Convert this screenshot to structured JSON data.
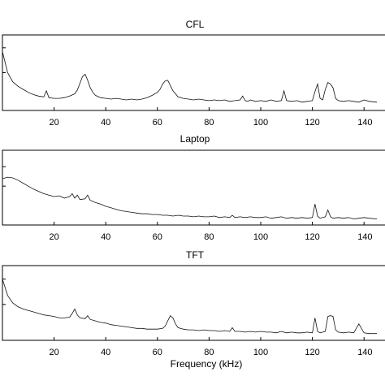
{
  "chart_data": [
    {
      "type": "line",
      "title": "CFL",
      "xlim": [
        0,
        145
      ],
      "x_ticks": [
        20,
        40,
        60,
        80,
        100,
        120,
        140
      ],
      "tick_labels": [
        "20",
        "40",
        "60",
        "80",
        "100",
        "120",
        "140"
      ],
      "x_ticks_cut_last": true,
      "ylabel": "",
      "ylim": [
        0,
        1
      ],
      "y_ticks": [
        0.5,
        0.83
      ],
      "grid": false,
      "series": [
        {
          "x": [
            0,
            2,
            4,
            6,
            8,
            10,
            12,
            14,
            16,
            17,
            18,
            20,
            22,
            24,
            26,
            28,
            29,
            30,
            31,
            32,
            33,
            34,
            35,
            36,
            38,
            40,
            42,
            44,
            46,
            48,
            50,
            52,
            54,
            56,
            58,
            60,
            61,
            62,
            63,
            64,
            65,
            66,
            67,
            68,
            70,
            72,
            74,
            76,
            78,
            80,
            82,
            84,
            86,
            88,
            90,
            92,
            93,
            94,
            95,
            96,
            98,
            100,
            102,
            104,
            106,
            108,
            109,
            110,
            112,
            114,
            116,
            118,
            120,
            121,
            122,
            123,
            124,
            125,
            126,
            127,
            128,
            129,
            130,
            132,
            134,
            136,
            138,
            140,
            142,
            145
          ],
          "y": [
            0.78,
            0.5,
            0.38,
            0.32,
            0.28,
            0.24,
            0.21,
            0.19,
            0.18,
            0.26,
            0.17,
            0.16,
            0.16,
            0.17,
            0.19,
            0.22,
            0.27,
            0.36,
            0.45,
            0.48,
            0.4,
            0.3,
            0.24,
            0.2,
            0.17,
            0.16,
            0.15,
            0.16,
            0.15,
            0.14,
            0.15,
            0.14,
            0.15,
            0.17,
            0.2,
            0.24,
            0.28,
            0.35,
            0.39,
            0.4,
            0.33,
            0.26,
            0.22,
            0.18,
            0.16,
            0.15,
            0.14,
            0.15,
            0.14,
            0.13,
            0.14,
            0.13,
            0.14,
            0.12,
            0.13,
            0.14,
            0.19,
            0.13,
            0.12,
            0.14,
            0.12,
            0.13,
            0.12,
            0.14,
            0.12,
            0.13,
            0.26,
            0.13,
            0.12,
            0.13,
            0.11,
            0.12,
            0.13,
            0.25,
            0.35,
            0.16,
            0.14,
            0.28,
            0.37,
            0.35,
            0.3,
            0.16,
            0.13,
            0.12,
            0.13,
            0.12,
            0.11,
            0.14,
            0.12,
            0.11
          ]
        }
      ]
    },
    {
      "type": "line",
      "title": "Laptop",
      "xlim": [
        0,
        145
      ],
      "x_ticks": [
        20,
        40,
        60,
        80,
        100,
        120,
        140
      ],
      "tick_labels": [
        "20",
        "40",
        "60",
        "80",
        "100",
        "120",
        "140"
      ],
      "x_ticks_cut_last": true,
      "ylabel": "",
      "ylim": [
        0,
        1
      ],
      "y_ticks": [
        0.52,
        0.78
      ],
      "grid": false,
      "series": [
        {
          "x": [
            0,
            2,
            4,
            6,
            8,
            10,
            12,
            14,
            16,
            18,
            20,
            22,
            24,
            26,
            27,
            28,
            29,
            30,
            32,
            33,
            34,
            36,
            38,
            40,
            42,
            44,
            46,
            48,
            50,
            52,
            54,
            56,
            58,
            60,
            62,
            64,
            66,
            68,
            70,
            72,
            74,
            76,
            78,
            80,
            82,
            84,
            86,
            88,
            89,
            90,
            92,
            94,
            96,
            98,
            100,
            102,
            104,
            106,
            108,
            110,
            112,
            114,
            116,
            118,
            120,
            121,
            122,
            123,
            124,
            125,
            126,
            127,
            128,
            130,
            132,
            134,
            136,
            138,
            140,
            142,
            145
          ],
          "y": [
            0.62,
            0.64,
            0.63,
            0.6,
            0.56,
            0.52,
            0.48,
            0.45,
            0.42,
            0.4,
            0.38,
            0.39,
            0.36,
            0.38,
            0.42,
            0.36,
            0.4,
            0.34,
            0.35,
            0.4,
            0.33,
            0.3,
            0.28,
            0.25,
            0.23,
            0.21,
            0.19,
            0.18,
            0.17,
            0.16,
            0.15,
            0.15,
            0.14,
            0.14,
            0.13,
            0.13,
            0.12,
            0.13,
            0.12,
            0.12,
            0.11,
            0.12,
            0.11,
            0.11,
            0.12,
            0.1,
            0.11,
            0.1,
            0.13,
            0.1,
            0.11,
            0.1,
            0.11,
            0.1,
            0.1,
            0.11,
            0.09,
            0.1,
            0.11,
            0.09,
            0.1,
            0.09,
            0.1,
            0.09,
            0.1,
            0.28,
            0.12,
            0.09,
            0.1,
            0.11,
            0.2,
            0.11,
            0.09,
            0.1,
            0.09,
            0.1,
            0.08,
            0.09,
            0.1,
            0.09,
            0.08
          ]
        }
      ]
    },
    {
      "type": "line",
      "title": "TFT",
      "xlabel": "Frequency (kHz)",
      "xlim": [
        0,
        145
      ],
      "x_ticks": [
        20,
        40,
        60,
        80,
        100,
        120,
        140
      ],
      "tick_labels": [
        "20",
        "40",
        "60",
        "80",
        "100",
        "120",
        "140"
      ],
      "x_ticks_cut_last": true,
      "ylabel": "",
      "ylim": [
        0,
        1
      ],
      "y_ticks": [
        0.48,
        0.82
      ],
      "grid": false,
      "series": [
        {
          "x": [
            0,
            2,
            4,
            6,
            8,
            10,
            12,
            14,
            16,
            18,
            20,
            22,
            24,
            26,
            27,
            28,
            29,
            30,
            32,
            33,
            34,
            36,
            38,
            40,
            42,
            44,
            46,
            48,
            50,
            52,
            54,
            56,
            58,
            60,
            62,
            63,
            64,
            65,
            66,
            67,
            68,
            70,
            72,
            74,
            76,
            78,
            80,
            82,
            84,
            86,
            88,
            89,
            90,
            92,
            94,
            96,
            98,
            100,
            102,
            104,
            106,
            108,
            110,
            112,
            114,
            116,
            118,
            120,
            121,
            122,
            123,
            124,
            125,
            126,
            127,
            128,
            129,
            130,
            132,
            134,
            136,
            138,
            140,
            142,
            145
          ],
          "y": [
            0.82,
            0.6,
            0.5,
            0.45,
            0.42,
            0.4,
            0.38,
            0.36,
            0.34,
            0.33,
            0.32,
            0.3,
            0.3,
            0.31,
            0.36,
            0.42,
            0.34,
            0.3,
            0.29,
            0.33,
            0.28,
            0.26,
            0.24,
            0.23,
            0.21,
            0.2,
            0.19,
            0.18,
            0.17,
            0.16,
            0.16,
            0.15,
            0.15,
            0.15,
            0.16,
            0.19,
            0.26,
            0.33,
            0.3,
            0.22,
            0.17,
            0.15,
            0.14,
            0.14,
            0.13,
            0.14,
            0.13,
            0.13,
            0.12,
            0.13,
            0.12,
            0.17,
            0.12,
            0.12,
            0.11,
            0.12,
            0.11,
            0.12,
            0.11,
            0.11,
            0.1,
            0.12,
            0.1,
            0.11,
            0.1,
            0.1,
            0.11,
            0.1,
            0.3,
            0.12,
            0.1,
            0.11,
            0.12,
            0.32,
            0.33,
            0.32,
            0.14,
            0.11,
            0.1,
            0.11,
            0.1,
            0.22,
            0.1,
            0.09,
            0.09
          ]
        }
      ]
    }
  ]
}
